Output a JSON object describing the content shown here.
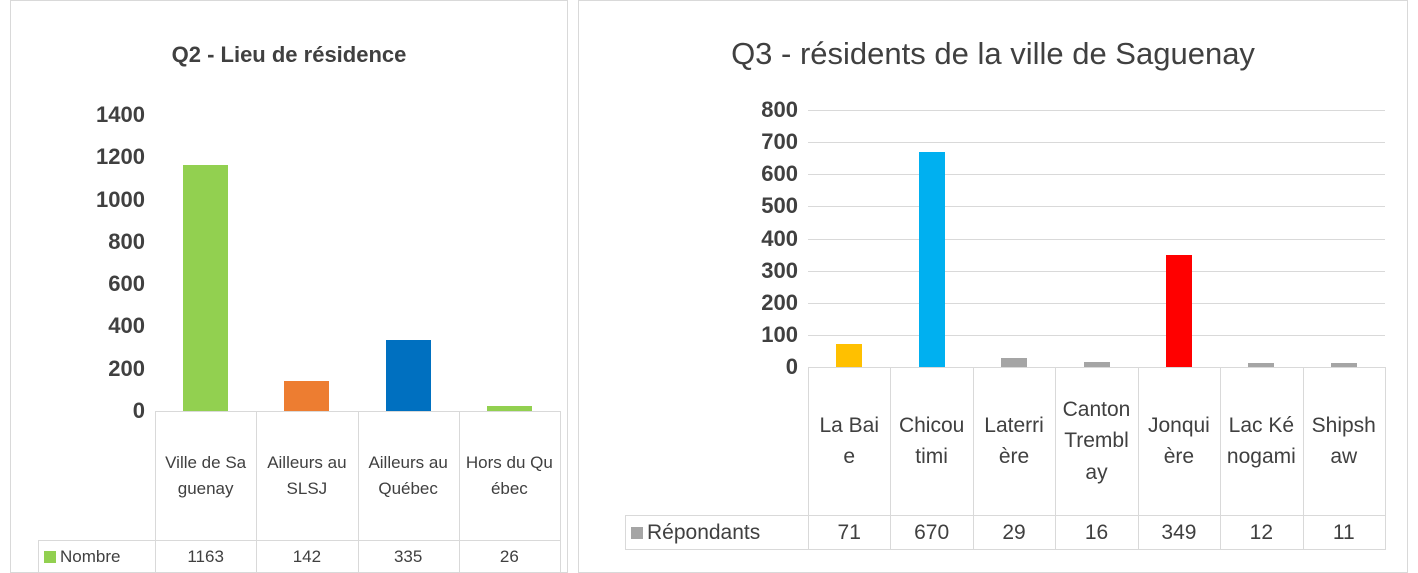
{
  "chart_data": [
    {
      "type": "bar",
      "title": "Q2 - Lieu de résidence",
      "categories": [
        "Ville de Saguenay",
        "Ailleurs au SLSJ",
        "Ailleurs au Québec",
        "Hors du Québec"
      ],
      "series": [
        {
          "name": "Nombre",
          "color": "#92d050",
          "colors": [
            "#92d050",
            "#ed7d31",
            "#0070c0",
            "#92d050"
          ],
          "values": [
            1163,
            142,
            335,
            26
          ]
        }
      ],
      "ylim": [
        0,
        1400
      ],
      "yticks": [
        0,
        200,
        400,
        600,
        800,
        1000,
        1200,
        1400
      ],
      "grid": false
    },
    {
      "type": "bar",
      "title": "Q3 - résidents de  la ville de Saguenay",
      "categories": [
        "La Baie",
        "Chicoutimi",
        "Laterrière",
        "Canton Tremblay",
        "Jonquière",
        "Lac Kénogami",
        "Shipshaw"
      ],
      "series": [
        {
          "name": "Répondants",
          "color": "#a5a5a5",
          "colors": [
            "#ffc000",
            "#00b0f0",
            "#a5a5a5",
            "#a5a5a5",
            "#ff0000",
            "#a5a5a5",
            "#a5a5a5"
          ],
          "values": [
            71,
            670,
            29,
            16,
            349,
            12,
            11
          ]
        }
      ],
      "ylim": [
        0,
        800
      ],
      "yticks": [
        0,
        100,
        200,
        300,
        400,
        500,
        600,
        700,
        800
      ],
      "grid": true
    }
  ]
}
